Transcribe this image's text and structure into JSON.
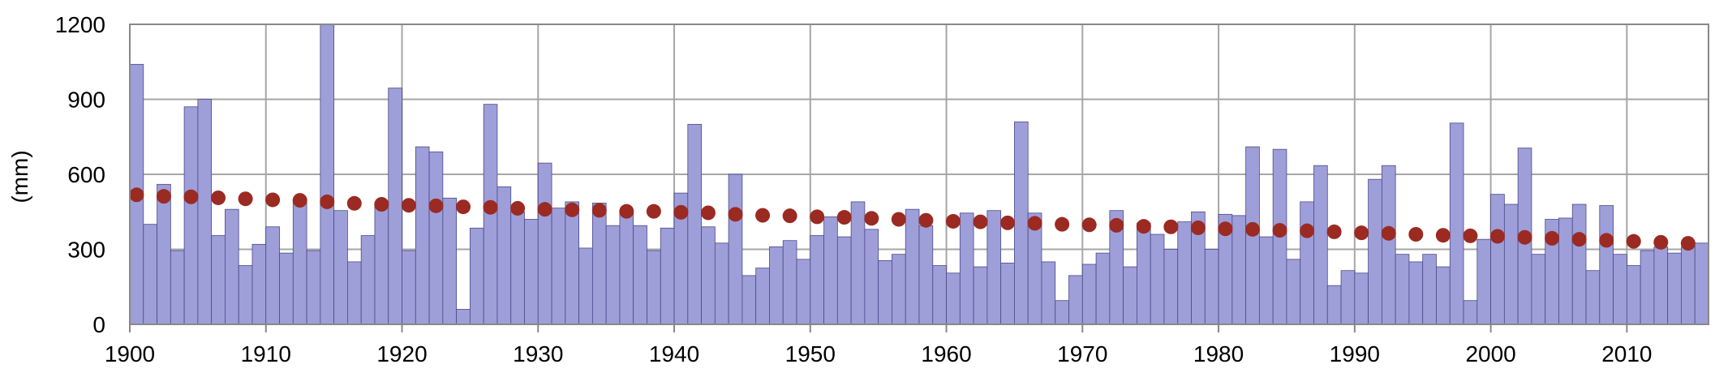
{
  "chart_data": {
    "type": "bar",
    "ylabel": "(mm)",
    "xlabel": "",
    "title": "",
    "ylim": [
      0,
      1200
    ],
    "yticks": [
      "0",
      "300",
      "600",
      "900",
      "1200"
    ],
    "xlim": [
      1900,
      2016
    ],
    "xticks": [
      "1900",
      "1910",
      "1920",
      "1930",
      "1940",
      "1950",
      "1960",
      "1970",
      "1980",
      "1990",
      "2000",
      "2010"
    ],
    "grid": true,
    "legend": "none",
    "bar_color": "#9e9ed9",
    "bar_stroke": "#4a4a8a",
    "dot_color": "#9b2a22",
    "series": [
      {
        "type": "bar",
        "years": [
          1900,
          1901,
          1902,
          1903,
          1904,
          1905,
          1906,
          1907,
          1908,
          1909,
          1910,
          1911,
          1912,
          1913,
          1914,
          1915,
          1916,
          1917,
          1918,
          1919,
          1920,
          1921,
          1922,
          1923,
          1924,
          1925,
          1926,
          1927,
          1928,
          1929,
          1930,
          1931,
          1932,
          1933,
          1934,
          1935,
          1936,
          1937,
          1938,
          1939,
          1940,
          1941,
          1942,
          1943,
          1944,
          1945,
          1946,
          1947,
          1948,
          1949,
          1950,
          1951,
          1952,
          1953,
          1954,
          1955,
          1956,
          1957,
          1958,
          1959,
          1960,
          1961,
          1962,
          1963,
          1964,
          1965,
          1966,
          1967,
          1968,
          1969,
          1970,
          1971,
          1972,
          1973,
          1974,
          1975,
          1976,
          1977,
          1978,
          1979,
          1980,
          1981,
          1982,
          1983,
          1984,
          1985,
          1986,
          1987,
          1988,
          1989,
          1990,
          1991,
          1992,
          1993,
          1994,
          1995,
          1996,
          1997,
          1998,
          1999,
          2000,
          2001,
          2002,
          2003,
          2004,
          2005,
          2006,
          2007,
          2008,
          2009,
          2010,
          2011,
          2012,
          2013,
          2014,
          2015
        ],
        "values": [
          1040,
          400,
          560,
          295,
          870,
          900,
          355,
          460,
          235,
          320,
          390,
          285,
          500,
          295,
          1200,
          455,
          250,
          355,
          480,
          945,
          295,
          710,
          690,
          505,
          60,
          385,
          880,
          550,
          450,
          420,
          645,
          465,
          490,
          305,
          485,
          395,
          445,
          395,
          295,
          385,
          525,
          800,
          390,
          325,
          600,
          195,
          225,
          310,
          335,
          260,
          355,
          430,
          350,
          490,
          380,
          255,
          280,
          460,
          395,
          235,
          205,
          445,
          230,
          455,
          245,
          810,
          445,
          250,
          95,
          195,
          240,
          285,
          455,
          230,
          405,
          360,
          300,
          410,
          450,
          300,
          440,
          435,
          710,
          350,
          700,
          260,
          490,
          635,
          155,
          215,
          205,
          580,
          635,
          280,
          250,
          280,
          230,
          805,
          95,
          340,
          520,
          480,
          705,
          280,
          420,
          425,
          480,
          215,
          475,
          280,
          235,
          295,
          310,
          285,
          310,
          325
        ]
      },
      {
        "type": "scatter",
        "years": [
          1900,
          1902,
          1904,
          1906,
          1908,
          1910,
          1912,
          1914,
          1916,
          1918,
          1920,
          1922,
          1924,
          1926,
          1928,
          1930,
          1932,
          1934,
          1936,
          1938,
          1940,
          1942,
          1944,
          1946,
          1948,
          1950,
          1952,
          1954,
          1956,
          1958,
          1960,
          1962,
          1964,
          1966,
          1968,
          1970,
          1972,
          1974,
          1976,
          1978,
          1980,
          1982,
          1984,
          1986,
          1988,
          1990,
          1992,
          1994,
          1996,
          1998,
          2000,
          2002,
          2004,
          2006,
          2008,
          2010,
          2012,
          2014
        ],
        "values": [
          518,
          512,
          510,
          506,
          502,
          498,
          496,
          490,
          484,
          480,
          476,
          474,
          470,
          468,
          464,
          460,
          458,
          456,
          452,
          452,
          448,
          446,
          440,
          436,
          434,
          430,
          428,
          424,
          420,
          416,
          412,
          410,
          406,
          404,
          400,
          398,
          396,
          392,
          390,
          386,
          382,
          380,
          376,
          374,
          370,
          366,
          364,
          360,
          356,
          354,
          352,
          348,
          344,
          340,
          336,
          332,
          328,
          324
        ]
      }
    ]
  }
}
